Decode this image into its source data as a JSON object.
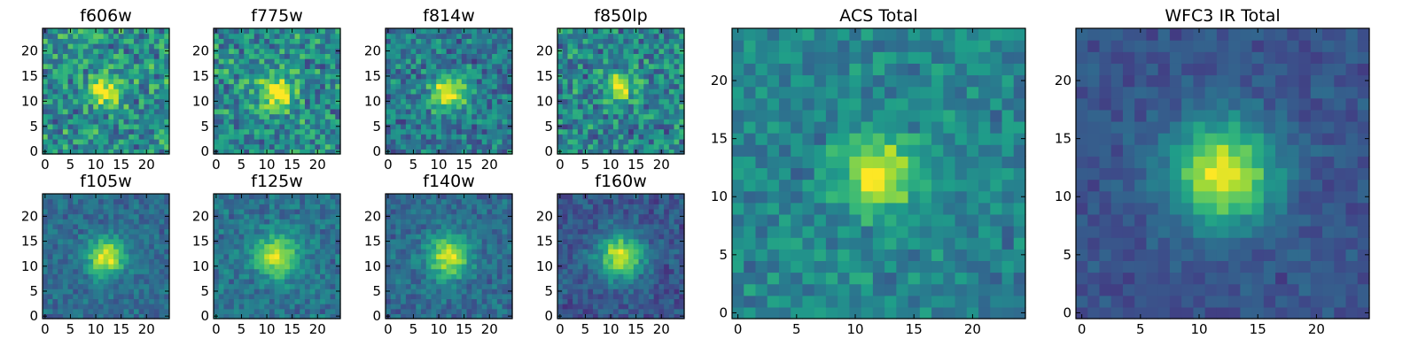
{
  "chart_data": [
    {
      "type": "heatmap",
      "title": "f606w",
      "colormap": "viridis",
      "shape": [
        25,
        25
      ],
      "xlim": [
        0,
        24
      ],
      "ylim": [
        0,
        24
      ],
      "x_ticks": [
        0,
        5,
        10,
        15,
        20
      ],
      "y_ticks": [
        0,
        5,
        10,
        15,
        20
      ],
      "source_center": [
        12,
        12
      ],
      "source_peak": 0.55,
      "source_sigma": 2.2,
      "background": 0.5,
      "noise": 0.32,
      "seed": 11
    },
    {
      "type": "heatmap",
      "title": "f775w",
      "colormap": "viridis",
      "shape": [
        25,
        25
      ],
      "xlim": [
        0,
        24
      ],
      "ylim": [
        0,
        24
      ],
      "x_ticks": [
        0,
        5,
        10,
        15,
        20
      ],
      "y_ticks": [
        0,
        5,
        10,
        15,
        20
      ],
      "source_center": [
        12,
        12
      ],
      "source_peak": 0.55,
      "source_sigma": 2.4,
      "background": 0.48,
      "noise": 0.3,
      "seed": 23
    },
    {
      "type": "heatmap",
      "title": "f814w",
      "colormap": "viridis",
      "shape": [
        25,
        25
      ],
      "xlim": [
        0,
        24
      ],
      "ylim": [
        0,
        24
      ],
      "x_ticks": [
        0,
        5,
        10,
        15,
        20
      ],
      "y_ticks": [
        0,
        5,
        10,
        15,
        20
      ],
      "source_center": [
        12,
        12
      ],
      "source_peak": 0.6,
      "source_sigma": 2.5,
      "background": 0.4,
      "noise": 0.26,
      "seed": 37
    },
    {
      "type": "heatmap",
      "title": "f850lp",
      "colormap": "viridis",
      "shape": [
        25,
        25
      ],
      "xlim": [
        0,
        24
      ],
      "ylim": [
        0,
        24
      ],
      "x_ticks": [
        0,
        5,
        10,
        15,
        20
      ],
      "y_ticks": [
        0,
        5,
        10,
        15,
        20
      ],
      "source_center": [
        12,
        13
      ],
      "source_peak": 0.55,
      "source_sigma": 1.9,
      "background": 0.45,
      "noise": 0.3,
      "seed": 41
    },
    {
      "type": "heatmap",
      "title": "f105w",
      "colormap": "viridis",
      "shape": [
        25,
        25
      ],
      "xlim": [
        0,
        24
      ],
      "ylim": [
        0,
        24
      ],
      "x_ticks": [
        0,
        5,
        10,
        15,
        20
      ],
      "y_ticks": [
        0,
        5,
        10,
        15,
        20
      ],
      "source_center": [
        12,
        12
      ],
      "source_peak": 0.62,
      "source_sigma": 2.6,
      "background": 0.35,
      "noise": 0.14,
      "seed": 53
    },
    {
      "type": "heatmap",
      "title": "f125w",
      "colormap": "viridis",
      "shape": [
        25,
        25
      ],
      "xlim": [
        0,
        24
      ],
      "ylim": [
        0,
        24
      ],
      "x_ticks": [
        0,
        5,
        10,
        15,
        20
      ],
      "y_ticks": [
        0,
        5,
        10,
        15,
        20
      ],
      "source_center": [
        12,
        12
      ],
      "source_peak": 0.55,
      "source_sigma": 3.0,
      "background": 0.38,
      "noise": 0.16,
      "seed": 67
    },
    {
      "type": "heatmap",
      "title": "f140w",
      "colormap": "viridis",
      "shape": [
        25,
        25
      ],
      "xlim": [
        0,
        24
      ],
      "ylim": [
        0,
        24
      ],
      "x_ticks": [
        0,
        5,
        10,
        15,
        20
      ],
      "y_ticks": [
        0,
        5,
        10,
        15,
        20
      ],
      "source_center": [
        12,
        12
      ],
      "source_peak": 0.6,
      "source_sigma": 2.9,
      "background": 0.35,
      "noise": 0.15,
      "seed": 79
    },
    {
      "type": "heatmap",
      "title": "f160w",
      "colormap": "viridis",
      "shape": [
        25,
        25
      ],
      "xlim": [
        0,
        24
      ],
      "ylim": [
        0,
        24
      ],
      "x_ticks": [
        0,
        5,
        10,
        15,
        20
      ],
      "y_ticks": [
        0,
        5,
        10,
        15,
        20
      ],
      "source_center": [
        12,
        12
      ],
      "source_peak": 0.68,
      "source_sigma": 3.0,
      "background": 0.27,
      "noise": 0.15,
      "seed": 83
    },
    {
      "type": "heatmap",
      "title": "ACS Total",
      "colormap": "viridis",
      "shape": [
        25,
        25
      ],
      "xlim": [
        0,
        24
      ],
      "ylim": [
        0,
        24
      ],
      "x_ticks": [
        0,
        5,
        10,
        15,
        20
      ],
      "y_ticks": [
        0,
        5,
        10,
        15,
        20
      ],
      "source_center": [
        12,
        12
      ],
      "source_peak": 0.55,
      "source_sigma": 2.3,
      "background": 0.45,
      "noise": 0.18,
      "seed": 97
    },
    {
      "type": "heatmap",
      "title": "WFC3 IR Total",
      "colormap": "viridis",
      "shape": [
        25,
        25
      ],
      "xlim": [
        0,
        24
      ],
      "ylim": [
        0,
        24
      ],
      "x_ticks": [
        0,
        5,
        10,
        15,
        20
      ],
      "y_ticks": [
        0,
        5,
        10,
        15,
        20
      ],
      "source_center": [
        12,
        12
      ],
      "source_peak": 0.7,
      "source_sigma": 3.1,
      "background": 0.26,
      "noise": 0.1,
      "seed": 101
    }
  ]
}
